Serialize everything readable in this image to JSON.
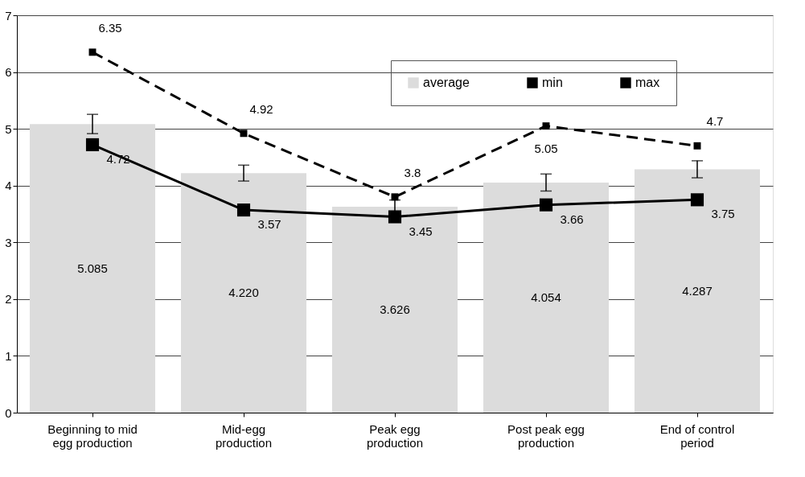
{
  "chart_data": {
    "type": "bar",
    "categories": [
      "Beginning to mid egg production",
      "Mid-egg production",
      "Peak egg production",
      "Post peak egg production",
      "End of control period"
    ],
    "series": [
      {
        "name": "average",
        "type": "bar",
        "color": "#dcdcdc",
        "values": [
          5.085,
          4.22,
          3.626,
          4.054,
          4.287
        ],
        "value_labels": [
          "5.085",
          "4.220",
          "3.626",
          "4.054",
          "4.287"
        ],
        "errors": [
          0.17,
          0.14,
          0.12,
          0.15,
          0.15
        ]
      },
      {
        "name": "min",
        "type": "line",
        "color": "#000000",
        "marker": "square",
        "line_style": "solid",
        "values": [
          4.72,
          3.57,
          3.45,
          3.66,
          3.75
        ]
      },
      {
        "name": "max",
        "type": "line",
        "color": "#000000",
        "marker": "square",
        "line_style": "dashed",
        "values": [
          6.35,
          4.92,
          3.8,
          5.05,
          4.7
        ]
      }
    ],
    "ylim": [
      0,
      7
    ],
    "yticks": [
      0,
      1,
      2,
      3,
      4,
      5,
      6,
      7
    ],
    "grid": "y",
    "legend": "top right",
    "data_labels": true
  }
}
